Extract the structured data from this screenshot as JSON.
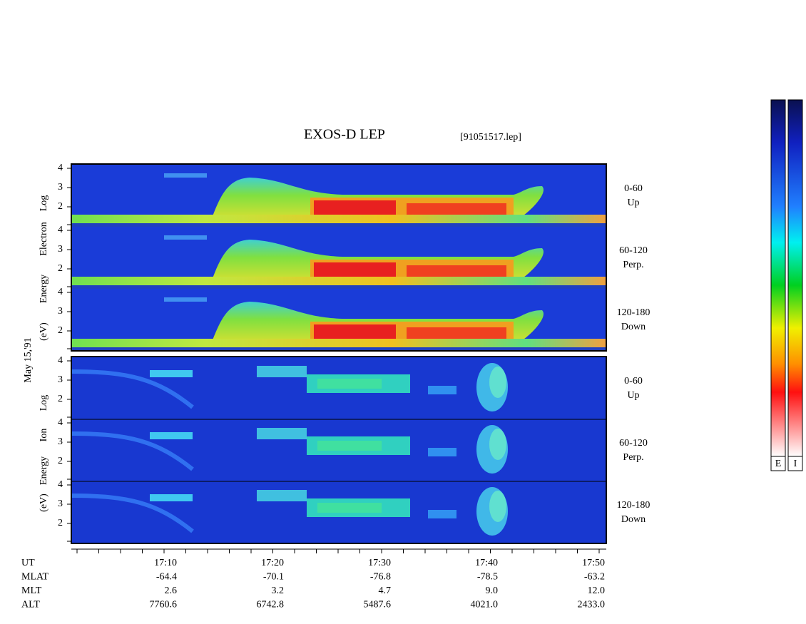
{
  "title": "EXOS-D LEP",
  "filename": "[91051517.lep]",
  "date": "May 15,'91",
  "yticks": [
    2,
    3,
    4
  ],
  "electron": {
    "ylabel": [
      "Log",
      "Electron",
      "Energy",
      "(eV)"
    ],
    "panels": [
      {
        "pitch": "0-60",
        "direction": "Up"
      },
      {
        "pitch": "60-120",
        "direction": "Perp."
      },
      {
        "pitch": "120-180",
        "direction": "Down"
      }
    ]
  },
  "ion": {
    "ylabel": [
      "Log",
      "Ion",
      "Energy",
      "(eV)"
    ],
    "panels": [
      {
        "pitch": "0-60",
        "direction": "Up"
      },
      {
        "pitch": "60-120",
        "direction": "Perp."
      },
      {
        "pitch": "120-180",
        "direction": "Down"
      }
    ]
  },
  "footer": {
    "rows": [
      {
        "label": "UT",
        "values": [
          "17:10",
          "17:20",
          "17:30",
          "17:40",
          "17:50"
        ]
      },
      {
        "label": "MLAT",
        "values": [
          "-64.4",
          "-70.1",
          "-76.8",
          "-78.5",
          "-63.2"
        ]
      },
      {
        "label": "MLT",
        "values": [
          "2.6",
          "3.2",
          "4.7",
          "9.0",
          "12.0"
        ]
      },
      {
        "label": "ALT",
        "values": [
          "7760.6",
          "6742.8",
          "5487.6",
          "4021.0",
          "2433.0"
        ]
      }
    ]
  },
  "colorbar": {
    "labels": [
      "E",
      "I"
    ]
  }
}
